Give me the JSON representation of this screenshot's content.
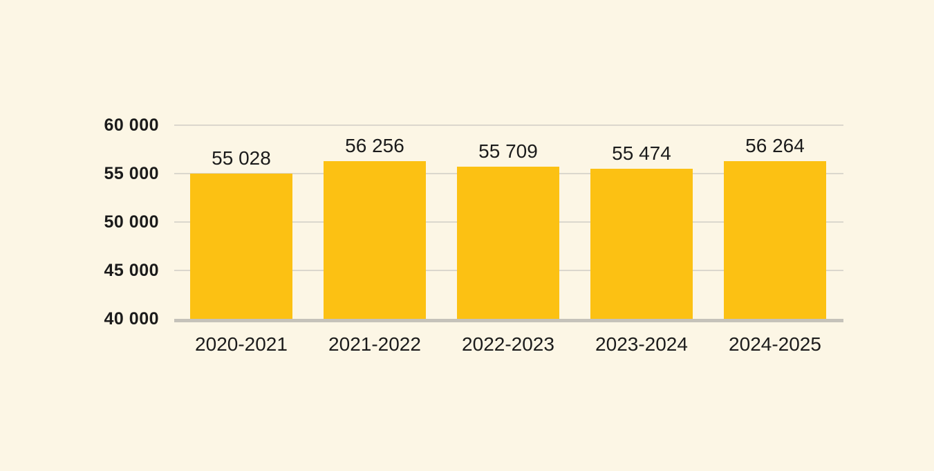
{
  "colors": {
    "background": "#FCF6E5",
    "bar": "#FCC113",
    "gridline": "#DBD7CD",
    "axis_line": "#C5C2BA",
    "text": "#1B1B1B"
  },
  "chart_data": {
    "type": "bar",
    "categories": [
      "2020-2021",
      "2021-2022",
      "2022-2023",
      "2023-2024",
      "2024-2025"
    ],
    "values": [
      55028,
      56256,
      55709,
      55474,
      56264
    ],
    "value_labels": [
      "55 028",
      "56 256",
      "55 709",
      "55 474",
      "56 264"
    ],
    "title": "",
    "xlabel": "",
    "ylabel": "",
    "ylim": [
      40000,
      60000
    ],
    "y_ticks": [
      40000,
      45000,
      50000,
      55000,
      60000
    ],
    "y_tick_labels": [
      "40 000",
      "45 000",
      "50 000",
      "55 000",
      "60 000"
    ],
    "grid": "horizontal",
    "legend": "none"
  }
}
